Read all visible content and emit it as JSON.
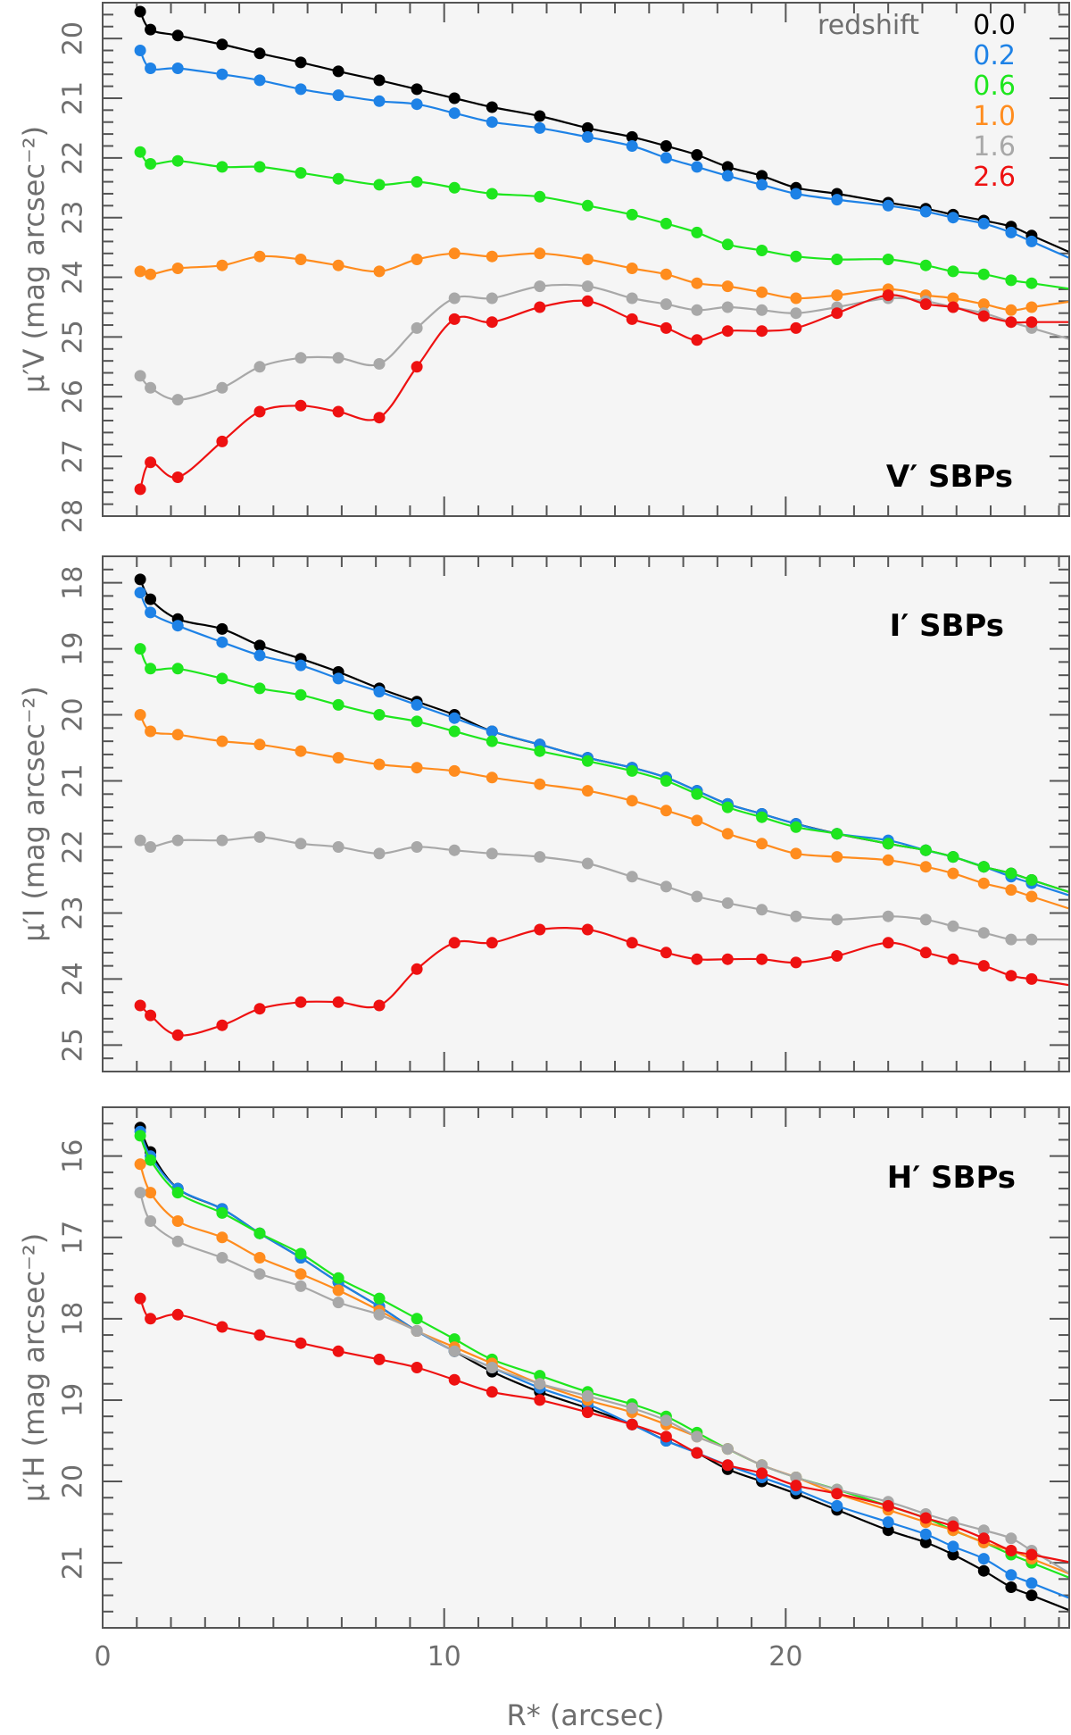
{
  "colors": {
    "background": "#f5f5f5",
    "frame": "#555555",
    "series": {
      "0.0": "#000000",
      "0.2": "#1e82e6",
      "0.6": "#1ee61e",
      "1.0": "#ff8c1e",
      "1.6": "#a8a8a8",
      "2.6": "#ee1111"
    }
  },
  "legend": {
    "title": "redshift",
    "placement": "top-right",
    "entries": [
      "0.0",
      "0.2",
      "0.6",
      "1.0",
      "1.6",
      "2.6"
    ]
  },
  "chart_data": [
    {
      "type": "line",
      "panel_label": "V′ SBPs",
      "ylabel": "μ′V (mag arcsec⁻²)",
      "xlim": [
        0,
        28.3
      ],
      "ylim": [
        28,
        19.4
      ],
      "y_inverted": true,
      "yticks": [
        20,
        21,
        22,
        23,
        24,
        25,
        26,
        27,
        28
      ],
      "x": [
        1.1,
        1.4,
        2.2,
        3.5,
        4.6,
        5.8,
        6.9,
        8.1,
        9.2,
        10.3,
        11.4,
        12.8,
        14.2,
        15.5,
        16.5,
        17.4,
        18.3,
        19.3,
        20.3,
        21.5,
        23.0,
        24.1,
        24.9,
        25.8,
        26.6,
        27.2
      ],
      "series": [
        {
          "name": "0.0",
          "values": [
            19.55,
            19.85,
            19.95,
            20.1,
            20.25,
            20.4,
            20.55,
            20.7,
            20.85,
            21.0,
            21.15,
            21.3,
            21.5,
            21.65,
            21.8,
            21.95,
            22.15,
            22.3,
            22.5,
            22.6,
            22.75,
            22.85,
            22.95,
            23.05,
            23.15,
            23.3
          ]
        },
        {
          "name": "0.2",
          "values": [
            20.2,
            20.5,
            20.5,
            20.6,
            20.7,
            20.85,
            20.95,
            21.05,
            21.1,
            21.25,
            21.4,
            21.5,
            21.65,
            21.8,
            22.0,
            22.15,
            22.3,
            22.45,
            22.6,
            22.7,
            22.8,
            22.9,
            23.0,
            23.1,
            23.25,
            23.4
          ]
        },
        {
          "name": "0.6",
          "values": [
            21.9,
            22.1,
            22.05,
            22.15,
            22.15,
            22.25,
            22.35,
            22.45,
            22.4,
            22.5,
            22.6,
            22.65,
            22.8,
            22.95,
            23.1,
            23.25,
            23.45,
            23.55,
            23.65,
            23.7,
            23.7,
            23.8,
            23.9,
            23.95,
            24.05,
            24.1
          ]
        },
        {
          "name": "1.0",
          "values": [
            23.9,
            23.95,
            23.85,
            23.8,
            23.65,
            23.7,
            23.8,
            23.9,
            23.7,
            23.6,
            23.65,
            23.6,
            23.7,
            23.85,
            23.95,
            24.1,
            24.15,
            24.25,
            24.35,
            24.3,
            24.2,
            24.3,
            24.35,
            24.45,
            24.55,
            24.5
          ]
        },
        {
          "name": "1.6",
          "values": [
            25.65,
            25.85,
            26.05,
            25.85,
            25.5,
            25.35,
            25.35,
            25.45,
            24.85,
            24.35,
            24.35,
            24.15,
            24.15,
            24.35,
            24.45,
            24.55,
            24.5,
            24.55,
            24.6,
            24.5,
            24.35,
            24.4,
            24.5,
            24.6,
            24.75,
            24.85
          ]
        },
        {
          "name": "2.6",
          "values": [
            27.55,
            27.1,
            27.35,
            26.75,
            26.25,
            26.15,
            26.25,
            26.35,
            25.5,
            24.7,
            24.75,
            24.5,
            24.4,
            24.7,
            24.85,
            25.05,
            24.9,
            24.9,
            24.85,
            24.6,
            24.3,
            24.45,
            24.5,
            24.65,
            24.75,
            24.75
          ]
        }
      ]
    },
    {
      "type": "line",
      "panel_label": "I′ SBPs",
      "ylabel": "μ′I (mag arcsec⁻²)",
      "xlim": [
        0,
        28.3
      ],
      "ylim": [
        25.4,
        17.6
      ],
      "y_inverted": true,
      "yticks": [
        18,
        19,
        20,
        21,
        22,
        23,
        24,
        25
      ],
      "x": [
        1.1,
        1.4,
        2.2,
        3.5,
        4.6,
        5.8,
        6.9,
        8.1,
        9.2,
        10.3,
        11.4,
        12.8,
        14.2,
        15.5,
        16.5,
        17.4,
        18.3,
        19.3,
        20.3,
        21.5,
        23.0,
        24.1,
        24.9,
        25.8,
        26.6,
        27.2
      ],
      "series": [
        {
          "name": "0.0",
          "values": [
            17.95,
            18.25,
            18.55,
            18.7,
            18.95,
            19.15,
            19.35,
            19.6,
            19.8,
            20.0,
            20.25,
            20.45,
            20.65,
            20.8,
            20.95,
            21.15,
            21.35,
            21.5,
            21.65,
            21.8,
            21.95,
            22.05,
            22.15,
            22.3,
            22.4,
            22.5
          ]
        },
        {
          "name": "0.2",
          "values": [
            18.15,
            18.45,
            18.65,
            18.9,
            19.1,
            19.25,
            19.45,
            19.65,
            19.85,
            20.05,
            20.25,
            20.45,
            20.65,
            20.8,
            20.95,
            21.15,
            21.35,
            21.5,
            21.65,
            21.8,
            21.9,
            22.05,
            22.15,
            22.3,
            22.45,
            22.55
          ]
        },
        {
          "name": "0.6",
          "values": [
            19.0,
            19.3,
            19.3,
            19.45,
            19.6,
            19.7,
            19.85,
            20.0,
            20.1,
            20.25,
            20.4,
            20.55,
            20.7,
            20.85,
            21.0,
            21.2,
            21.4,
            21.55,
            21.7,
            21.8,
            21.95,
            22.05,
            22.15,
            22.3,
            22.4,
            22.5
          ]
        },
        {
          "name": "1.0",
          "values": [
            20.0,
            20.25,
            20.3,
            20.4,
            20.45,
            20.55,
            20.65,
            20.75,
            20.8,
            20.85,
            20.95,
            21.05,
            21.15,
            21.3,
            21.45,
            21.6,
            21.8,
            21.95,
            22.1,
            22.15,
            22.2,
            22.3,
            22.4,
            22.55,
            22.65,
            22.75
          ]
        },
        {
          "name": "1.6",
          "values": [
            21.9,
            22.0,
            21.9,
            21.9,
            21.85,
            21.95,
            22.0,
            22.1,
            22.0,
            22.05,
            22.1,
            22.15,
            22.25,
            22.45,
            22.6,
            22.75,
            22.85,
            22.95,
            23.05,
            23.1,
            23.05,
            23.1,
            23.2,
            23.3,
            23.4,
            23.4
          ]
        },
        {
          "name": "2.6",
          "values": [
            24.4,
            24.55,
            24.85,
            24.7,
            24.45,
            24.35,
            24.35,
            24.4,
            23.85,
            23.45,
            23.45,
            23.25,
            23.25,
            23.45,
            23.6,
            23.7,
            23.7,
            23.7,
            23.75,
            23.65,
            23.45,
            23.6,
            23.7,
            23.8,
            23.95,
            24.0
          ]
        }
      ]
    },
    {
      "type": "line",
      "panel_label": "H′ SBPs",
      "ylabel": "μ′H (mag arcsec⁻²)",
      "xlabel": "R* (arcsec)",
      "xlim": [
        0,
        28.3
      ],
      "xticks": [
        0,
        10,
        20
      ],
      "ylim": [
        21.8,
        15.4
      ],
      "y_inverted": true,
      "yticks": [
        16,
        17,
        18,
        19,
        20,
        21
      ],
      "x": [
        1.1,
        1.4,
        2.2,
        3.5,
        4.6,
        5.8,
        6.9,
        8.1,
        9.2,
        10.3,
        11.4,
        12.8,
        14.2,
        15.5,
        16.5,
        17.4,
        18.3,
        19.3,
        20.3,
        21.5,
        23.0,
        24.1,
        24.9,
        25.8,
        26.6,
        27.2
      ],
      "series": [
        {
          "name": "0.0",
          "values": [
            15.65,
            15.95,
            16.4,
            16.65,
            16.95,
            17.25,
            17.55,
            17.85,
            18.15,
            18.4,
            18.65,
            18.9,
            19.1,
            19.3,
            19.5,
            19.65,
            19.85,
            20.0,
            20.15,
            20.35,
            20.6,
            20.75,
            20.9,
            21.1,
            21.3,
            21.4
          ]
        },
        {
          "name": "0.2",
          "values": [
            15.7,
            16.0,
            16.4,
            16.65,
            16.95,
            17.25,
            17.55,
            17.85,
            18.15,
            18.4,
            18.6,
            18.85,
            19.05,
            19.3,
            19.5,
            19.65,
            19.8,
            19.95,
            20.1,
            20.3,
            20.5,
            20.65,
            20.8,
            20.95,
            21.15,
            21.25
          ]
        },
        {
          "name": "0.6",
          "values": [
            15.75,
            16.05,
            16.45,
            16.7,
            16.95,
            17.2,
            17.5,
            17.75,
            18.0,
            18.25,
            18.5,
            18.7,
            18.9,
            19.05,
            19.2,
            19.4,
            19.6,
            19.8,
            19.95,
            20.1,
            20.3,
            20.45,
            20.6,
            20.75,
            20.9,
            21.0
          ]
        },
        {
          "name": "1.0",
          "values": [
            16.1,
            16.45,
            16.8,
            17.0,
            17.25,
            17.45,
            17.65,
            17.9,
            18.15,
            18.35,
            18.55,
            18.8,
            19.0,
            19.15,
            19.3,
            19.45,
            19.6,
            19.8,
            19.95,
            20.15,
            20.35,
            20.5,
            20.6,
            20.75,
            20.85,
            20.95
          ]
        },
        {
          "name": "1.6",
          "values": [
            16.45,
            16.8,
            17.05,
            17.25,
            17.45,
            17.6,
            17.8,
            17.95,
            18.15,
            18.4,
            18.6,
            18.8,
            18.95,
            19.1,
            19.25,
            19.45,
            19.6,
            19.8,
            19.95,
            20.1,
            20.25,
            20.4,
            20.5,
            20.6,
            20.7,
            20.85
          ]
        },
        {
          "name": "2.6",
          "values": [
            17.75,
            18.0,
            17.95,
            18.1,
            18.2,
            18.3,
            18.4,
            18.5,
            18.6,
            18.75,
            18.9,
            19.0,
            19.15,
            19.3,
            19.45,
            19.65,
            19.8,
            19.9,
            20.05,
            20.15,
            20.3,
            20.45,
            20.55,
            20.7,
            20.85,
            20.9
          ]
        }
      ]
    }
  ]
}
